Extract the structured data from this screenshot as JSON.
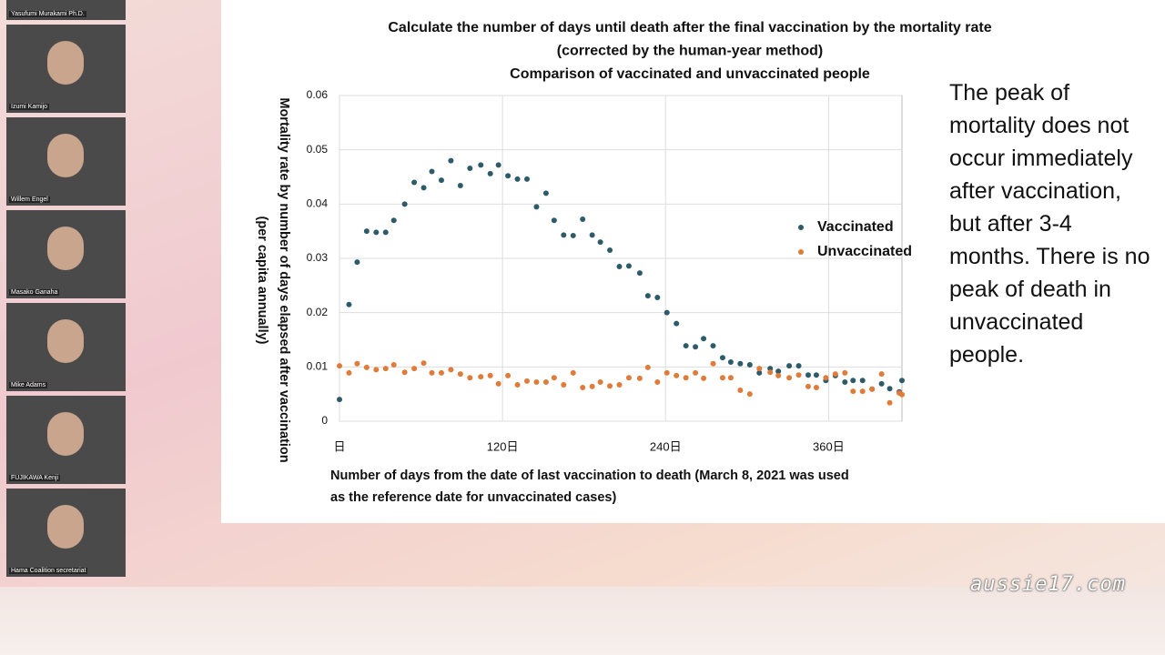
{
  "participants": [
    {
      "name": "Yasufumi Murakami Ph.D."
    },
    {
      "name": "Izumi Kamijo"
    },
    {
      "name": "Willem Engel"
    },
    {
      "name": "Masako Ganaha"
    },
    {
      "name": "Mike Adams"
    },
    {
      "name": "FUJIKAWA Kenji"
    },
    {
      "name": "Hama Coalition secretariat"
    }
  ],
  "slide": {
    "note": "The peak of mortality does not occur immediately after vaccination, but after 3-4 months. There is no peak of death in unvaccinated people."
  },
  "watermark": "aussie17.com",
  "chart_data": {
    "type": "scatter",
    "title": [
      "Calculate the number of days until death after the final vaccination by the mortality rate",
      "(corrected by the human-year method)",
      "Comparison of vaccinated and unvaccinated people"
    ],
    "x_label": [
      "Number of days from the date of last vaccination to death (March 8, 2021 was used",
      "as the reference date for unvaccinated cases)"
    ],
    "y_label": [
      "Mortality rate by number of days elapsed after vaccination",
      "(per capita annually)"
    ],
    "x": [
      0,
      7,
      13,
      20,
      27,
      34,
      40,
      48,
      55,
      62,
      68,
      75,
      82,
      89,
      96,
      104,
      111,
      117,
      124,
      131,
      138,
      145,
      152,
      158,
      165,
      172,
      179,
      186,
      192,
      199,
      206,
      213,
      221,
      227,
      234,
      241,
      248,
      255,
      262,
      268,
      275,
      282,
      288,
      295,
      302,
      309,
      317,
      323,
      331,
      338,
      345,
      351,
      358,
      365,
      372,
      378,
      385,
      392,
      399,
      405,
      412,
      414
    ],
    "series": [
      {
        "name": "Vaccinated",
        "color": "#2d5b69",
        "values": [
          0.004,
          0.0215,
          0.0293,
          0.035,
          0.0348,
          0.0348,
          0.037,
          0.04,
          0.044,
          0.043,
          0.046,
          0.0444,
          0.048,
          0.0434,
          0.0466,
          0.0472,
          0.0456,
          0.0472,
          0.0452,
          0.0446,
          0.0446,
          0.0395,
          0.042,
          0.037,
          0.0343,
          0.0342,
          0.0372,
          0.0343,
          0.033,
          0.0315,
          0.0285,
          0.0286,
          0.0273,
          0.0231,
          0.0228,
          0.02,
          0.018,
          0.0139,
          0.0137,
          0.0152,
          0.0139,
          0.0117,
          0.0109,
          0.0106,
          0.0104,
          0.0089,
          0.0097,
          0.0092,
          0.0102,
          0.0102,
          0.0085,
          0.0085,
          0.0075,
          0.0084,
          0.0072,
          0.0075,
          0.0075,
          0.0059,
          0.0069,
          0.006,
          0.0054,
          0.0075
        ]
      },
      {
        "name": "Unvaccinated",
        "color": "#e07b39",
        "values": [
          0.0102,
          0.0089,
          0.0106,
          0.0099,
          0.0095,
          0.0097,
          0.0104,
          0.009,
          0.0097,
          0.0107,
          0.0089,
          0.0089,
          0.0095,
          0.0087,
          0.008,
          0.0082,
          0.0084,
          0.0069,
          0.0084,
          0.0067,
          0.0074,
          0.0072,
          0.0072,
          0.008,
          0.0067,
          0.0089,
          0.0062,
          0.0064,
          0.0072,
          0.0065,
          0.0067,
          0.008,
          0.0079,
          0.0099,
          0.0072,
          0.0089,
          0.0084,
          0.008,
          0.0089,
          0.0079,
          0.0106,
          0.008,
          0.008,
          0.0057,
          0.005,
          0.0097,
          0.009,
          0.0084,
          0.008,
          0.0085,
          0.0064,
          0.0062,
          0.008,
          0.0087,
          0.0089,
          0.0055,
          0.0055,
          0.0059,
          0.0087,
          0.0034,
          0.0052,
          0.0049
        ]
      }
    ],
    "xlim": [
      0,
      414
    ],
    "xticks": [
      {
        "value": 0,
        "label": "日"
      },
      {
        "value": 120,
        "label": "120日"
      },
      {
        "value": 240,
        "label": "240日"
      },
      {
        "value": 360,
        "label": "360日"
      }
    ],
    "ylim": [
      0,
      0.06
    ],
    "yticks": [
      0,
      0.01,
      0.02,
      0.03,
      0.04,
      0.05,
      0.06
    ],
    "grid": true
  }
}
